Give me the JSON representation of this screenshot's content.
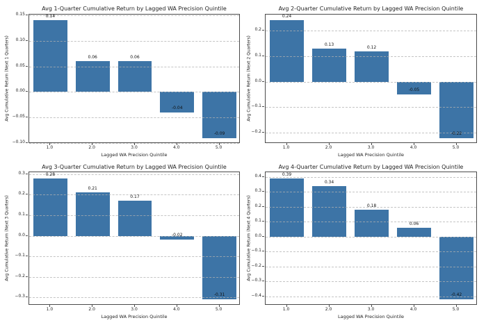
{
  "figure": {
    "background": "#ffffff",
    "bar_color": "#3d74a6",
    "text_color": "#1f1f1f",
    "grid_color": "rgba(176,176,176,0.75)",
    "spine_color": "#4a4a4a"
  },
  "chart_data": [
    {
      "type": "bar",
      "title": "Avg 1-Quarter Cumulative Return by Lagged WA Precision Quintile",
      "xlabel": "Lagged WA Precision Quintile",
      "ylabel": "Avg Cumulative Return (Next 1 Quarters)",
      "categories": [
        "1.0",
        "2.0",
        "3.0",
        "4.0",
        "5.0"
      ],
      "values": [
        0.14,
        0.06,
        0.06,
        -0.04,
        -0.09
      ],
      "bar_labels": [
        "0.14",
        "0.06",
        "0.06",
        "-0.04",
        "-0.09"
      ],
      "ylim": [
        -0.1015,
        0.1515
      ],
      "yticks": [
        -0.1,
        -0.05,
        0.0,
        0.05,
        0.1,
        0.15
      ],
      "ytick_labels": [
        "−0.10",
        "−0.05",
        "0.00",
        "0.05",
        "0.10",
        "0.15"
      ],
      "grid": true,
      "legend": "none"
    },
    {
      "type": "bar",
      "title": "Avg 2-Quarter Cumulative Return by Lagged WA Precision Quintile",
      "xlabel": "Lagged WA Precision Quintile",
      "ylabel": "Avg Cumulative Return (Next 2 Quarters)",
      "categories": [
        "1.0",
        "2.0",
        "3.0",
        "4.0",
        "5.0"
      ],
      "values": [
        0.24,
        0.13,
        0.12,
        -0.05,
        -0.22
      ],
      "bar_labels": [
        "0.24",
        "0.13",
        "0.12",
        "-0.05",
        "-0.22"
      ],
      "ylim": [
        -0.243,
        0.263
      ],
      "yticks": [
        -0.2,
        -0.1,
        0.0,
        0.1,
        0.2
      ],
      "ytick_labels": [
        "−0.2",
        "−0.1",
        "0.0",
        "0.1",
        "0.2"
      ],
      "grid": true,
      "legend": "none"
    },
    {
      "type": "bar",
      "title": "Avg 3-Quarter Cumulative Return by Lagged WA Precision Quintile",
      "xlabel": "Lagged WA Precision Quintile",
      "ylabel": "Avg Cumulative Return (Next 3 Quarters)",
      "categories": [
        "1.0",
        "2.0",
        "3.0",
        "4.0",
        "5.0"
      ],
      "values": [
        0.28,
        0.21,
        0.17,
        -0.02,
        -0.31
      ],
      "bar_labels": [
        "0.28",
        "0.21",
        "0.17",
        "-0.02",
        "-0.31"
      ],
      "ylim": [
        -0.3395,
        0.3095
      ],
      "yticks": [
        -0.3,
        -0.2,
        -0.1,
        0.0,
        0.1,
        0.2,
        0.3
      ],
      "ytick_labels": [
        "−0.3",
        "−0.2",
        "−0.1",
        "0.0",
        "0.1",
        "0.2",
        "0.3"
      ],
      "grid": true,
      "legend": "none"
    },
    {
      "type": "bar",
      "title": "Avg 4-Quarter Cumulative Return by Lagged WA Precision Quintile",
      "xlabel": "Lagged WA Precision Quintile",
      "ylabel": "Avg Cumulative Return (Next 4 Quarters)",
      "categories": [
        "1.0",
        "2.0",
        "3.0",
        "4.0",
        "5.0"
      ],
      "values": [
        0.39,
        0.34,
        0.18,
        0.06,
        -0.42
      ],
      "bar_labels": [
        "0.39",
        "0.34",
        "0.18",
        "0.06",
        "-0.42"
      ],
      "ylim": [
        -0.4605,
        0.4305
      ],
      "yticks": [
        -0.4,
        -0.3,
        -0.2,
        -0.1,
        0.0,
        0.1,
        0.2,
        0.3,
        0.4
      ],
      "ytick_labels": [
        "−0.4",
        "−0.3",
        "−0.2",
        "−0.1",
        "0.0",
        "0.1",
        "0.2",
        "0.3",
        "0.4"
      ],
      "grid": true,
      "legend": "none"
    }
  ]
}
